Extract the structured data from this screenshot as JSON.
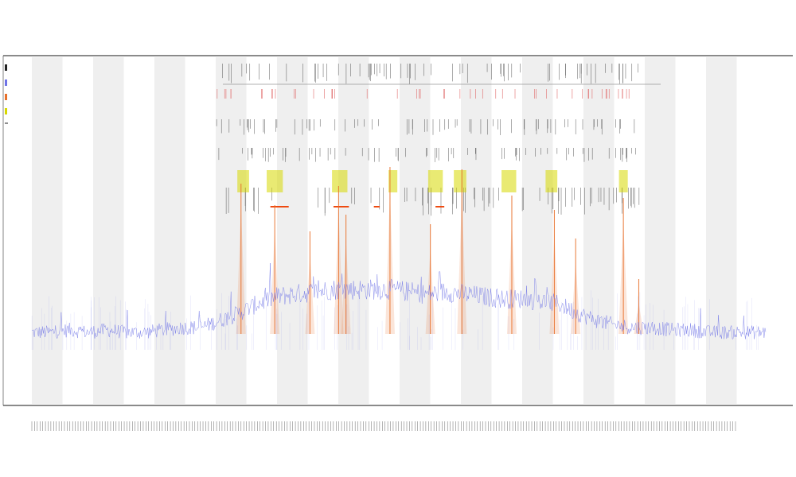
{
  "colors": {
    "background": "#ffffff",
    "band_shade": "#efefef",
    "axis": "#444444",
    "coverage_line": "#6f73e6",
    "orange_peak": "#e8702a",
    "orange_segment": "#ee4a10",
    "yellow_box": "#d7d800",
    "red_marks": "#e06a6a",
    "black_marks": "#222222",
    "bracket": "#999999"
  },
  "chart_data": {
    "type": "line",
    "title": "",
    "subtitle_lines": [
      "",
      ""
    ],
    "xlabel": "",
    "ylabel": "",
    "legend_placement": "left",
    "legend_entries": [
      "",
      "",
      "",
      ""
    ],
    "bands": {
      "count": 12,
      "shaded": true
    },
    "x_ticks_count": 260,
    "grid": false,
    "series": [
      {
        "kind": "coverage",
        "values_baseline": [
          0.1,
          0.1,
          0.11,
          0.1,
          0.11,
          0.1,
          0.1,
          0.11,
          0.12,
          0.12,
          0.15,
          0.18,
          0.22,
          0.25,
          0.26,
          0.27,
          0.28,
          0.28,
          0.28,
          0.28,
          0.27,
          0.26,
          0.27,
          0.26,
          0.25,
          0.24,
          0.24,
          0.23,
          0.22,
          0.18,
          0.15,
          0.13,
          0.12,
          0.12,
          0.11,
          0.11,
          0.1,
          0.1,
          0.1,
          0.1
        ]
      }
    ],
    "orange_spikes": [
      {
        "x": 0.285,
        "h": 0.63
      },
      {
        "x": 0.331,
        "h": 0.54
      },
      {
        "x": 0.379,
        "h": 0.43
      },
      {
        "x": 0.418,
        "h": 0.62
      },
      {
        "x": 0.428,
        "h": 0.5
      },
      {
        "x": 0.488,
        "h": 0.7
      },
      {
        "x": 0.543,
        "h": 0.46
      },
      {
        "x": 0.586,
        "h": 0.69
      },
      {
        "x": 0.654,
        "h": 0.58
      },
      {
        "x": 0.712,
        "h": 0.52
      },
      {
        "x": 0.741,
        "h": 0.4
      },
      {
        "x": 0.806,
        "h": 0.57
      },
      {
        "x": 0.827,
        "h": 0.23
      }
    ],
    "orange_segments": [
      {
        "x0": 0.325,
        "x1": 0.35
      },
      {
        "x0": 0.411,
        "x1": 0.432
      },
      {
        "x0": 0.466,
        "x1": 0.474
      },
      {
        "x0": 0.55,
        "x1": 0.562
      }
    ],
    "yellow_boxes": [
      {
        "x0": 0.28,
        "x1": 0.296
      },
      {
        "x0": 0.32,
        "x1": 0.342
      },
      {
        "x0": 0.409,
        "x1": 0.43
      },
      {
        "x0": 0.486,
        "x1": 0.498
      },
      {
        "x0": 0.54,
        "x1": 0.56
      },
      {
        "x0": 0.575,
        "x1": 0.592
      },
      {
        "x0": 0.64,
        "x1": 0.66
      },
      {
        "x0": 0.7,
        "x1": 0.716
      },
      {
        "x0": 0.8,
        "x1": 0.812
      }
    ]
  }
}
